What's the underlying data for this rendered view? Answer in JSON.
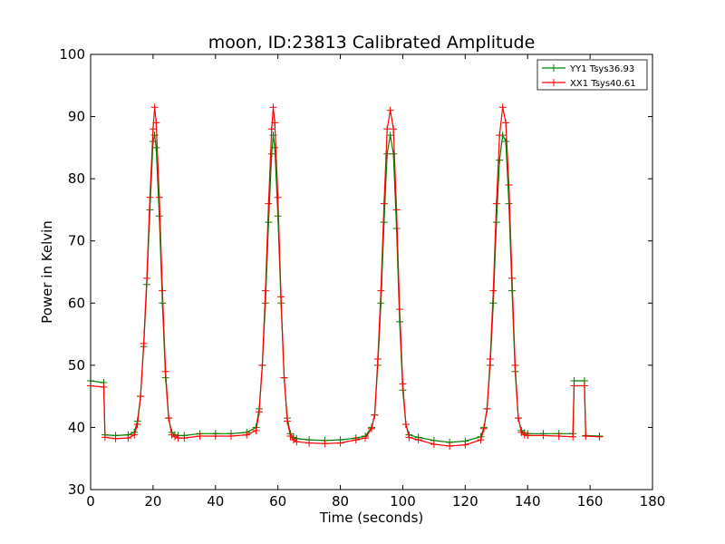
{
  "chart_data": {
    "type": "line",
    "title": "moon, ID:23813 Calibrated Amplitude",
    "xlabel": "Time (seconds)",
    "ylabel": "Power in Kelvin",
    "xlim": [
      0,
      180
    ],
    "ylim": [
      30,
      100
    ],
    "xticks": [
      "0",
      "20",
      "40",
      "60",
      "80",
      "100",
      "120",
      "140",
      "160",
      "180"
    ],
    "yticks": [
      "30",
      "40",
      "50",
      "60",
      "70",
      "80",
      "90",
      "100"
    ],
    "grid": false,
    "legend_position": "top-right",
    "marker": "+",
    "series": [
      {
        "name": "YY1 Tsys36.93",
        "color": "#008000",
        "x": [
          0,
          4.2,
          4.6,
          8,
          12,
          14,
          15,
          16,
          17,
          18,
          19,
          20,
          20.5,
          21,
          22,
          23,
          24,
          25,
          26,
          27,
          28,
          30,
          35,
          40,
          45,
          50,
          53,
          54,
          55,
          56,
          57,
          58,
          58.5,
          59,
          60,
          61,
          62,
          63,
          64,
          65,
          66,
          70,
          75,
          80,
          85,
          88,
          90,
          91,
          92,
          93,
          94,
          95,
          96,
          97,
          98,
          99,
          100,
          101,
          102,
          105,
          110,
          115,
          120,
          125,
          126,
          127,
          128,
          129,
          130,
          131,
          132,
          133,
          134,
          135,
          136,
          137,
          138,
          139,
          140,
          145,
          150,
          154.5,
          154.9,
          158.2,
          158.6,
          163
        ],
        "y": [
          47.5,
          47.2,
          38.8,
          38.7,
          38.8,
          39.2,
          41,
          45,
          53,
          63,
          75,
          86,
          87,
          85,
          74,
          60,
          48,
          41.5,
          39.2,
          38.8,
          38.7,
          38.7,
          39,
          39,
          39,
          39.2,
          40,
          43,
          50,
          60,
          73,
          84,
          87,
          85,
          74,
          60,
          48,
          41.5,
          39,
          38.4,
          38.2,
          38,
          37.9,
          38,
          38.3,
          38.6,
          40,
          42,
          50,
          60,
          73,
          84,
          87,
          84,
          72,
          57,
          46,
          40.5,
          38.8,
          38.4,
          37.9,
          37.6,
          37.8,
          38.5,
          40,
          43,
          50,
          60,
          73,
          83,
          87,
          86,
          76,
          62,
          49,
          41.5,
          39.5,
          39.1,
          39,
          39,
          39,
          39,
          47.5,
          47.5,
          38.7,
          38.6
        ]
      },
      {
        "name": "XX1 Tsys40.61",
        "color": "#ff0000",
        "x": [
          0,
          4.2,
          4.6,
          8,
          12,
          14,
          15,
          16,
          17,
          18,
          19,
          20,
          20.5,
          21,
          22,
          23,
          24,
          25,
          26,
          27,
          28,
          30,
          35,
          40,
          45,
          50,
          53,
          54,
          55,
          56,
          57,
          58,
          58.5,
          59,
          60,
          61,
          62,
          63,
          64,
          65,
          66,
          70,
          75,
          80,
          85,
          88,
          90,
          91,
          92,
          93,
          94,
          95,
          96,
          97,
          98,
          99,
          100,
          101,
          102,
          105,
          110,
          115,
          120,
          125,
          126,
          127,
          128,
          129,
          130,
          131,
          132,
          133,
          134,
          135,
          136,
          137,
          138,
          139,
          140,
          145,
          150,
          154.5,
          154.9,
          158.2,
          158.6,
          163
        ],
        "y": [
          46.7,
          46.5,
          38.4,
          38.2,
          38.3,
          38.8,
          40.5,
          45,
          53.5,
          64,
          77,
          88,
          91.5,
          89,
          77,
          62,
          49,
          41.5,
          38.8,
          38.5,
          38.3,
          38.3,
          38.6,
          38.6,
          38.6,
          38.8,
          39.5,
          42.5,
          50,
          62,
          76,
          88,
          91.5,
          89,
          77,
          61,
          48,
          41,
          38.6,
          38,
          37.7,
          37.5,
          37.4,
          37.5,
          38,
          38.3,
          39.8,
          42,
          51,
          62,
          76,
          88,
          91,
          88,
          75,
          59,
          47,
          40.5,
          38.4,
          38,
          37.3,
          37,
          37.2,
          38,
          39.8,
          43,
          51,
          62,
          76,
          87,
          91.5,
          89,
          79,
          64,
          50,
          41.5,
          39.2,
          38.8,
          38.7,
          38.7,
          38.6,
          38.5,
          46.7,
          46.7,
          38.6,
          38.5
        ]
      }
    ]
  }
}
